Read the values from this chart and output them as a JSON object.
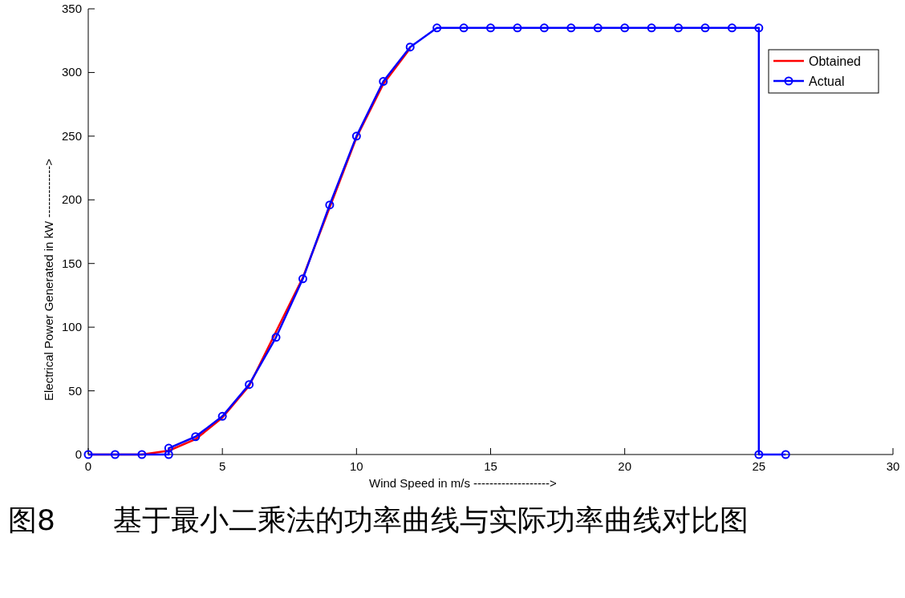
{
  "chart_data": {
    "type": "line",
    "xlabel": "Wind Speed in m/s ------------------->",
    "ylabel": "Electrical Power Generated in kW ------------->",
    "xlim": [
      0,
      30
    ],
    "xticks": [
      0,
      5,
      10,
      15,
      20,
      25,
      30
    ],
    "ylim": [
      0,
      350
    ],
    "yticks": [
      0,
      50,
      100,
      150,
      200,
      250,
      300,
      350
    ],
    "legend": "top right",
    "series": [
      {
        "name": "Obtained",
        "color": "#ff0000",
        "marker": "none",
        "x": [
          0,
          1,
          2,
          3,
          4,
          5,
          6,
          8,
          10,
          11,
          12
        ],
        "values": [
          0,
          0,
          0,
          3,
          12,
          29,
          54,
          139,
          249,
          291,
          319
        ]
      },
      {
        "name": "Actual",
        "color": "#0000ff",
        "marker": "circle",
        "x": [
          0,
          1,
          2,
          3,
          3,
          4,
          5,
          6,
          7,
          8,
          9,
          10,
          11,
          12,
          13,
          14,
          15,
          16,
          17,
          18,
          19,
          20,
          21,
          22,
          23,
          24,
          25,
          25,
          26
        ],
        "values": [
          0,
          0,
          0,
          0,
          5,
          14,
          30,
          55,
          92,
          138,
          196,
          250,
          293,
          320,
          335,
          335,
          335,
          335,
          335,
          335,
          335,
          335,
          335,
          335,
          335,
          335,
          335,
          0,
          0
        ]
      }
    ],
    "annotations": [
      "图8　　基于最小二乘法的功率曲线与实际功率曲线对比图"
    ]
  }
}
